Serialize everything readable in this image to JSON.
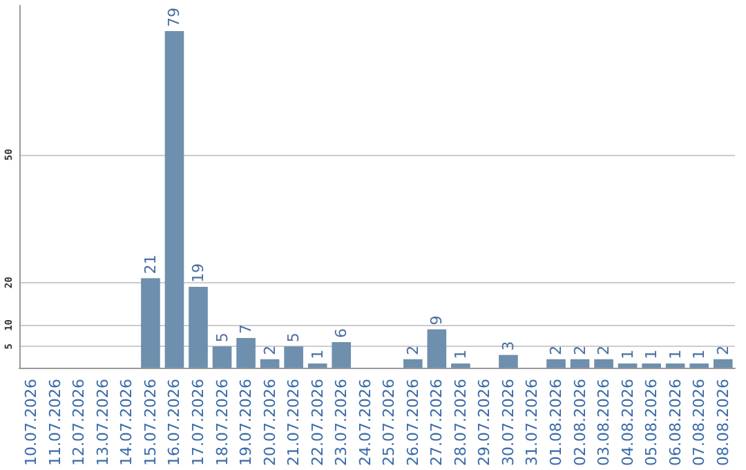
{
  "chart_data": {
    "type": "bar",
    "categories": [
      "10.07.2026",
      "11.07.2026",
      "12.07.2026",
      "13.07.2026",
      "14.07.2026",
      "15.07.2026",
      "16.07.2026",
      "17.07.2026",
      "18.07.2026",
      "19.07.2026",
      "20.07.2026",
      "21.07.2026",
      "22.07.2026",
      "23.07.2026",
      "24.07.2026",
      "25.07.2026",
      "26.07.2026",
      "27.07.2026",
      "28.07.2026",
      "29.07.2026",
      "30.07.2026",
      "31.07.2026",
      "01.08.2026",
      "02.08.2026",
      "03.08.2026",
      "04.08.2026",
      "05.08.2026",
      "06.08.2026",
      "07.08.2026",
      "08.08.2026"
    ],
    "values": [
      null,
      null,
      null,
      null,
      null,
      21,
      79,
      19,
      5,
      7,
      2,
      5,
      1,
      6,
      null,
      null,
      2,
      9,
      1,
      null,
      3,
      null,
      2,
      2,
      2,
      1,
      1,
      1,
      1,
      2
    ],
    "color": "#6e8fad",
    "ylim": [
      0,
      85
    ],
    "yticks": [
      5,
      10,
      20,
      50
    ],
    "grid": true,
    "data_labels": true
  }
}
